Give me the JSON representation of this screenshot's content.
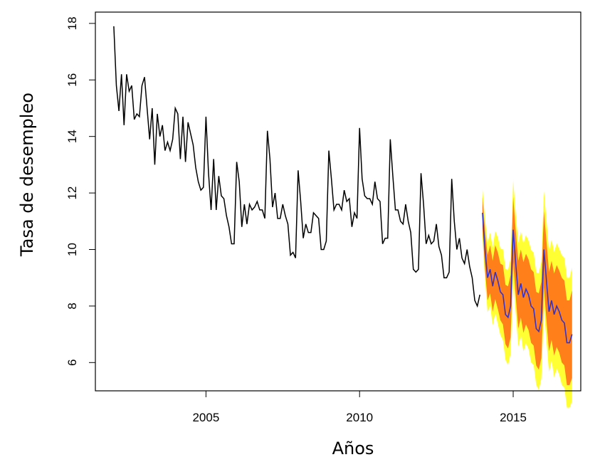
{
  "chart_data": {
    "type": "line",
    "title": "",
    "xlabel": "Años",
    "ylabel": "Tasa de desempleo",
    "xlim": [
      2001.4,
      2017.2
    ],
    "ylim": [
      5.0,
      18.4
    ],
    "x_ticks": [
      2005,
      2010,
      2015
    ],
    "y_ticks": [
      6,
      8,
      10,
      12,
      14,
      16,
      18
    ],
    "grid": false,
    "legend": "none",
    "colors": {
      "historical": "#000000",
      "forecast_mean": "#3333cc",
      "interval_80": "#ff7f1a",
      "interval_95": "#ffff33"
    },
    "series": [
      {
        "values_note": "monthly series",
        "start": 2002.0,
        "step": 0.08333,
        "values": [
          17.9,
          15.8,
          14.9,
          16.2,
          14.4,
          16.2,
          15.6,
          15.8,
          14.6,
          14.8,
          14.7,
          15.8,
          16.1,
          15.0,
          13.9,
          15.0,
          13.0,
          14.8,
          14.0,
          14.4,
          13.5,
          13.8,
          13.5,
          13.9,
          15.0,
          14.8,
          13.2,
          14.7,
          13.1,
          14.5,
          14.1,
          13.7,
          12.9,
          12.4,
          12.1,
          12.2,
          14.7,
          12.7,
          11.4,
          13.2,
          11.4,
          12.6,
          11.9,
          11.8,
          11.2,
          10.8,
          10.2,
          10.2,
          13.1,
          12.4,
          10.8,
          11.6,
          10.9,
          11.6,
          11.4,
          11.5,
          11.7,
          11.4,
          11.4,
          11.1,
          14.2,
          13.2,
          11.5,
          12.0,
          11.1,
          11.1,
          11.6,
          11.2,
          10.9,
          9.8,
          9.9,
          9.7,
          12.8,
          11.7,
          10.4,
          10.9,
          10.6,
          10.6,
          11.3,
          11.2,
          11.1,
          10.0,
          10.0,
          10.3,
          13.5,
          12.5,
          11.4,
          11.6,
          11.6,
          11.4,
          12.1,
          11.7,
          11.8,
          10.8,
          11.3,
          11.1,
          14.3,
          12.5,
          11.9,
          11.8,
          11.8,
          11.6,
          12.4,
          11.8,
          11.7,
          10.2,
          10.4,
          10.4,
          13.9,
          12.6,
          11.4,
          11.4,
          11.0,
          10.9,
          11.6,
          11.0,
          10.6,
          9.3,
          9.2,
          9.3,
          12.7,
          11.6,
          10.2,
          10.5,
          10.2,
          10.3,
          10.9,
          10.1,
          9.8,
          9.0,
          9.0,
          9.2,
          12.5,
          11.0,
          10.0,
          10.4,
          9.7,
          9.5,
          10.0,
          9.4,
          9.0,
          8.2,
          8.0,
          8.4
        ],
        "name": ""
      },
      {
        "values_note": "forecast mean, monthly",
        "start": 2014.0,
        "step": 0.08333,
        "values": [
          11.3,
          10.0,
          9.0,
          9.3,
          8.7,
          9.2,
          8.9,
          8.5,
          8.4,
          7.7,
          7.6,
          8.0,
          10.7,
          9.5,
          8.4,
          8.8,
          8.3,
          8.6,
          8.4,
          8.0,
          7.9,
          7.2,
          7.1,
          7.5,
          10.0,
          8.9,
          7.8,
          8.2,
          7.7,
          8.0,
          7.8,
          7.5,
          7.4,
          6.7,
          6.7,
          7.0
        ],
        "name": ""
      }
    ],
    "forecast_intervals": {
      "start": 2014.0,
      "step": 0.08333,
      "lo80_offset": [
        0.55,
        0.7,
        0.8,
        0.85,
        0.9,
        0.95,
        1.0,
        1.0,
        1.05,
        1.05,
        1.1,
        1.1,
        1.15,
        1.15,
        1.2,
        1.2,
        1.25,
        1.25,
        1.25,
        1.3,
        1.3,
        1.3,
        1.35,
        1.35,
        1.35,
        1.4,
        1.4,
        1.4,
        1.45,
        1.45,
        1.45,
        1.5,
        1.5,
        1.5,
        1.5,
        1.55
      ],
      "lo95_multiplier": 1.53
    }
  }
}
